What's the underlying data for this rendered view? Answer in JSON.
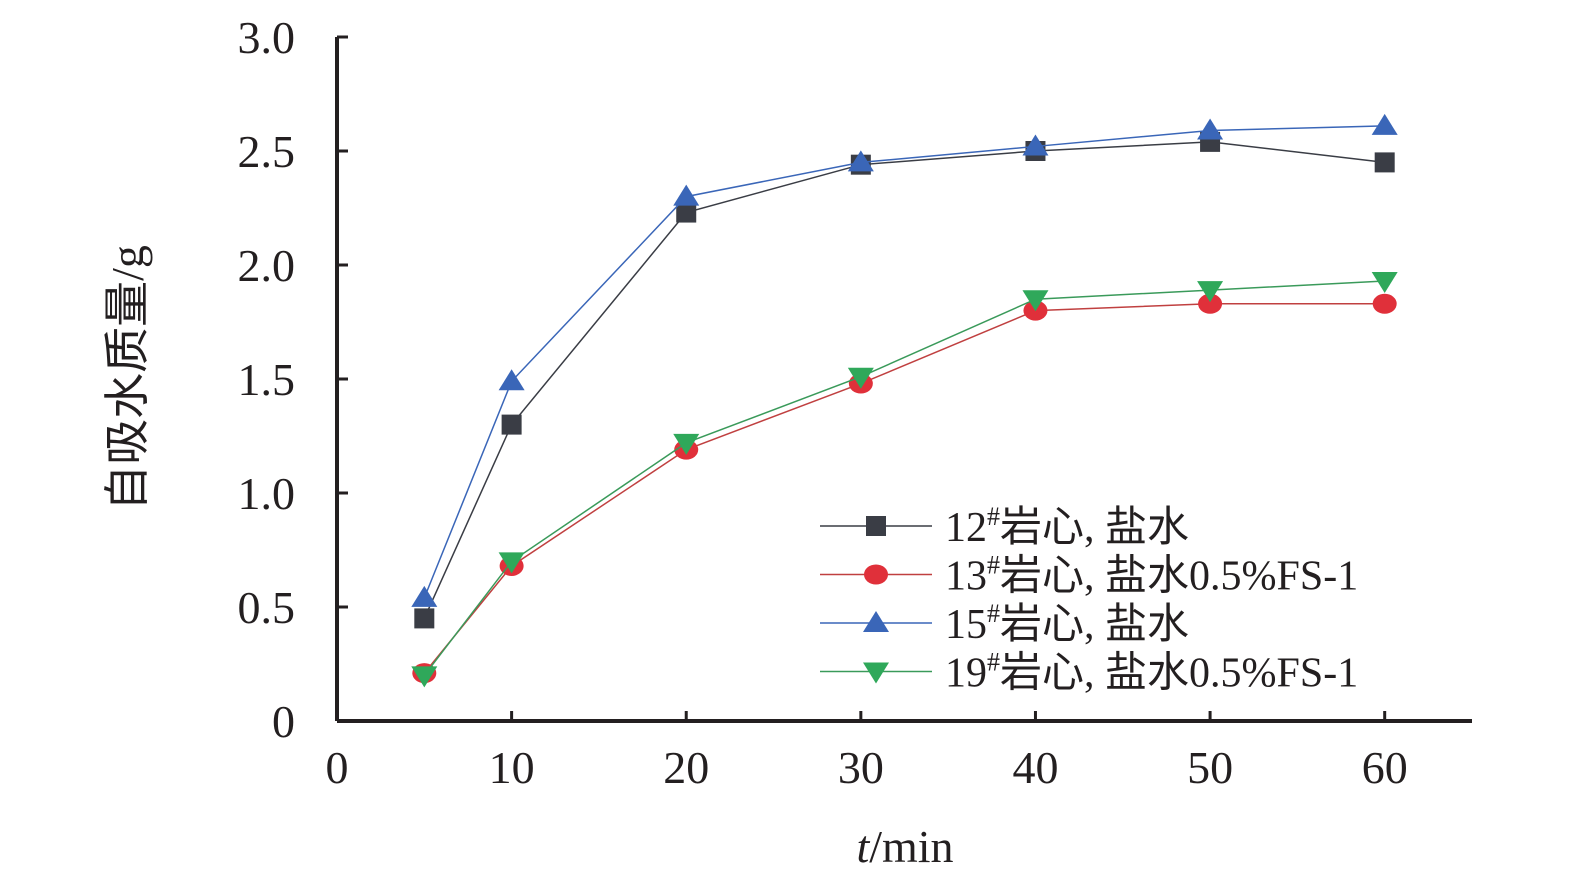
{
  "chart_data": {
    "type": "line",
    "xlabel_italic": "t",
    "xlabel_rest": "/min",
    "ylabel": "自吸水质量/g",
    "xlim": [
      0,
      65
    ],
    "ylim": [
      0,
      3.0
    ],
    "x_ticks": [
      0,
      10,
      20,
      30,
      40,
      50,
      60
    ],
    "x_tick_labels": [
      "0",
      "10",
      "20",
      "30",
      "40",
      "50",
      "60"
    ],
    "y_ticks": [
      0,
      0.5,
      1.0,
      1.5,
      2.0,
      2.5,
      3.0
    ],
    "y_tick_labels": [
      "0",
      "0.5",
      "1.0",
      "1.5",
      "2.0",
      "2.5",
      "3.0"
    ],
    "grid": false,
    "legend_position": "bottom-right",
    "x": [
      5,
      10,
      20,
      30,
      40,
      50,
      60
    ],
    "series": [
      {
        "name_num": "12",
        "name_sup": "#",
        "name_rest": "岩心, 盐水",
        "marker": "square",
        "color": "#3a3d45",
        "line_color": "#3a3d45",
        "values": [
          0.45,
          1.3,
          2.23,
          2.44,
          2.5,
          2.54,
          2.45
        ]
      },
      {
        "name_num": "13",
        "name_sup": "#",
        "name_rest": "岩心, 盐水0.5%FS-1",
        "marker": "circle",
        "color": "#e0303a",
        "line_color": "#c04040",
        "values": [
          0.21,
          0.68,
          1.19,
          1.48,
          1.8,
          1.83,
          1.83
        ]
      },
      {
        "name_num": "15",
        "name_sup": "#",
        "name_rest": "岩心, 盐水",
        "marker": "triangle-up",
        "color": "#3a66b8",
        "line_color": "#3a66b8",
        "values": [
          0.54,
          1.49,
          2.3,
          2.45,
          2.52,
          2.59,
          2.61
        ]
      },
      {
        "name_num": "19",
        "name_sup": "#",
        "name_rest": "岩心, 盐水0.5%FS-1",
        "marker": "triangle-down",
        "color": "#2fa85a",
        "line_color": "#3a9a5a",
        "values": [
          0.2,
          0.7,
          1.22,
          1.51,
          1.85,
          1.89,
          1.93
        ]
      }
    ]
  }
}
